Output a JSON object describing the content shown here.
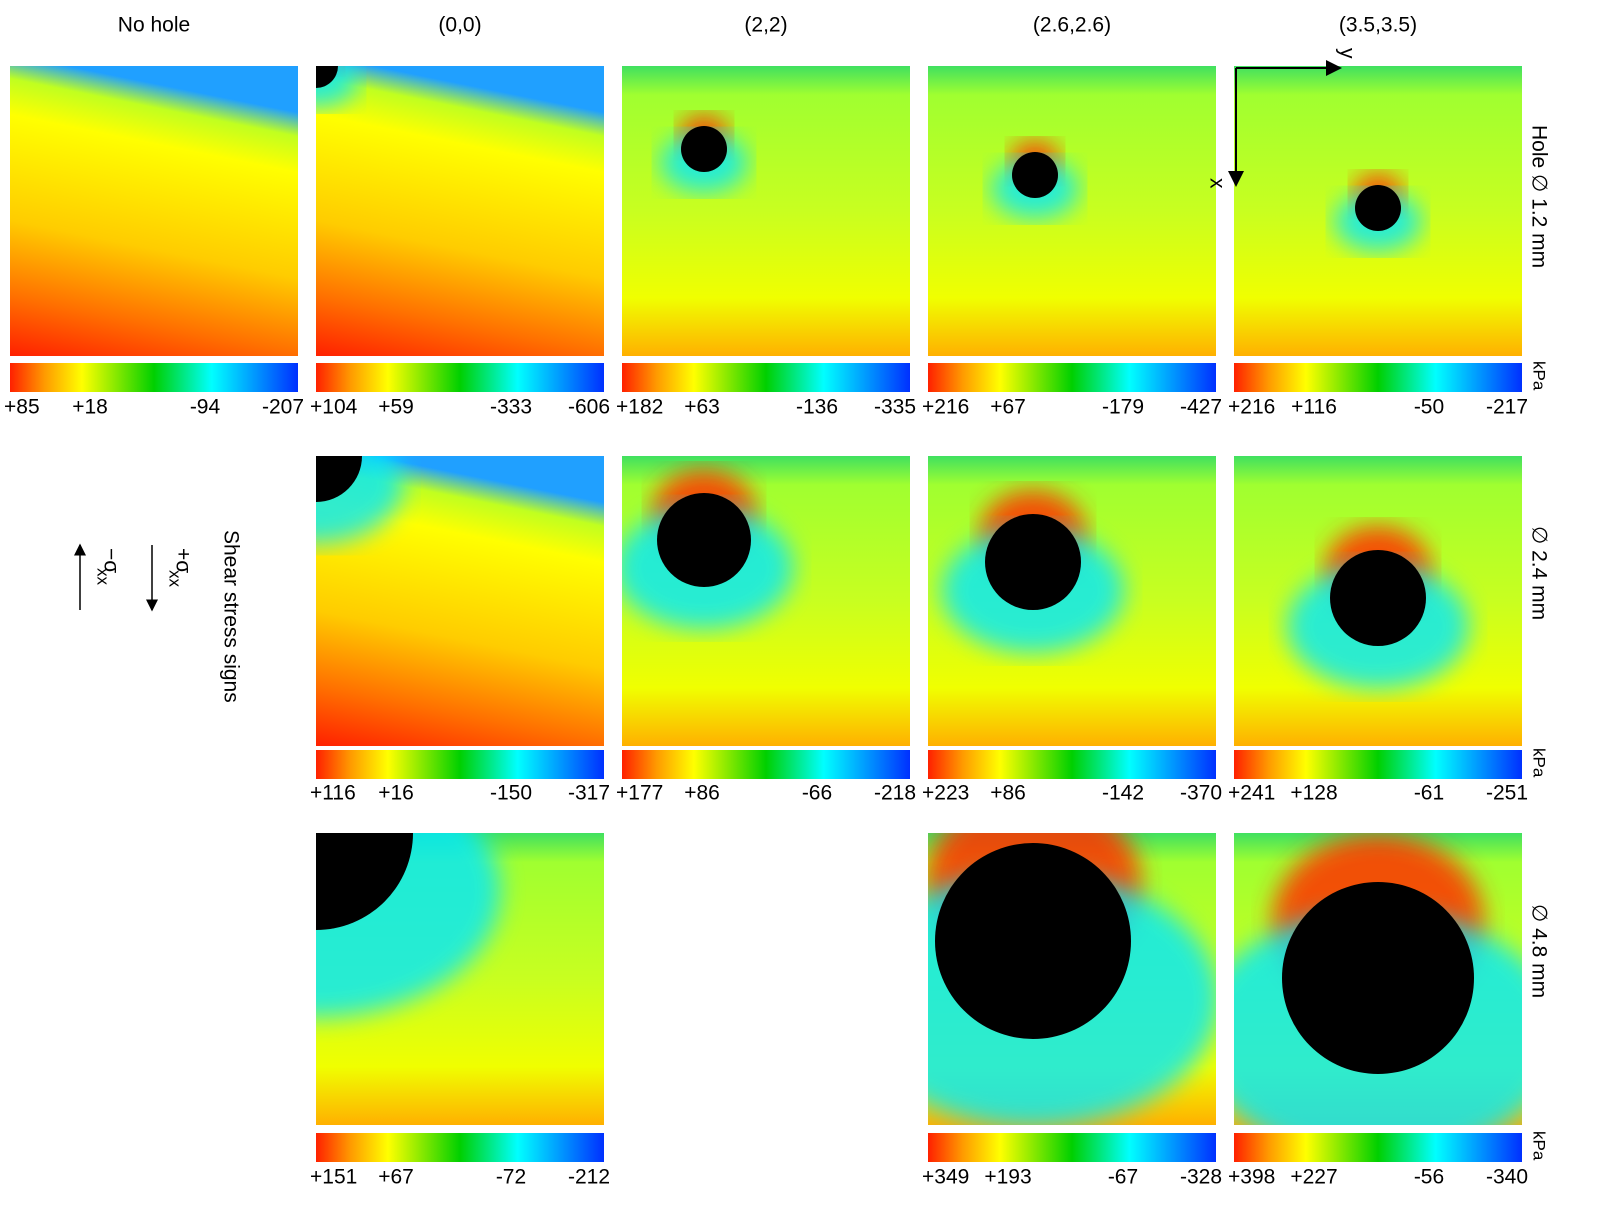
{
  "columns": [
    "No hole",
    "(0,0)",
    "(2,2)",
    "(2.6,2.6)",
    "(3.5,3.5)"
  ],
  "rows": [
    {
      "label": "Hole  ∅ 1.2 mm",
      "unit": "kPa",
      "scales": [
        [
          "+85",
          "+18",
          "-94",
          "-207"
        ],
        [
          "+104",
          "+59",
          "-333",
          "-606"
        ],
        [
          "+182",
          "+63",
          "-136",
          "-335"
        ],
        [
          "+216",
          "+67",
          "-179",
          "-427"
        ],
        [
          "+216",
          "+116",
          "-50",
          "-217"
        ]
      ]
    },
    {
      "label": "∅  2.4 mm",
      "unit": "kPa",
      "scales": [
        null,
        [
          "+116",
          "+16",
          "-150",
          "-317"
        ],
        [
          "+177",
          "+86",
          "-66",
          "-218"
        ],
        [
          "+223",
          "+86",
          "-142",
          "-370"
        ],
        [
          "+241",
          "+128",
          "-61",
          "-251"
        ]
      ]
    },
    {
      "label": "∅  4.8 mm",
      "unit": "kPa",
      "scales": [
        null,
        [
          "+151",
          "+67",
          "-72",
          "-212"
        ],
        null,
        [
          "+349",
          "+193",
          "-67",
          "-328"
        ],
        [
          "+398",
          "+227",
          "-56",
          "-340"
        ]
      ]
    }
  ],
  "axes": {
    "x": "x",
    "y": "y"
  },
  "sign_legend": {
    "title": "Shear stress signs",
    "positive": "+σ",
    "negative": "−σ",
    "subscript": "xx"
  }
}
